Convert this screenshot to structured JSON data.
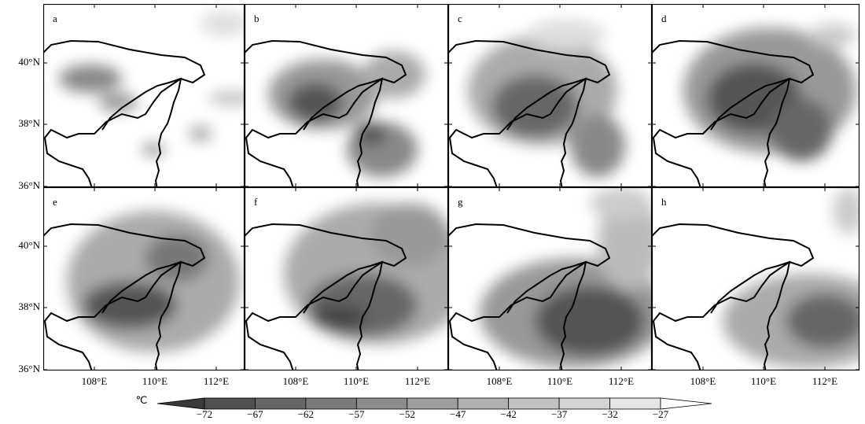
{
  "panels": [
    "a",
    "b",
    "c",
    "d",
    "e",
    "f",
    "g",
    "h"
  ],
  "lat_ticks": [
    "40°N",
    "38°N",
    "36°N"
  ],
  "lon_ticks": [
    "108°E",
    "110°E",
    "112°E"
  ],
  "colorbar": {
    "unit": "℃",
    "labels": [
      "−72",
      "−67",
      "−62",
      "−57",
      "−52",
      "−47",
      "−42",
      "−37",
      "−32",
      "−27"
    ],
    "colors": [
      "#3a3a3a",
      "#505050",
      "#666666",
      "#7a7a7a",
      "#8c8c8c",
      "#9e9e9e",
      "#b0b0b0",
      "#c2c2c2",
      "#d4d4d4",
      "#e6e6e6",
      "#ffffff"
    ]
  }
}
